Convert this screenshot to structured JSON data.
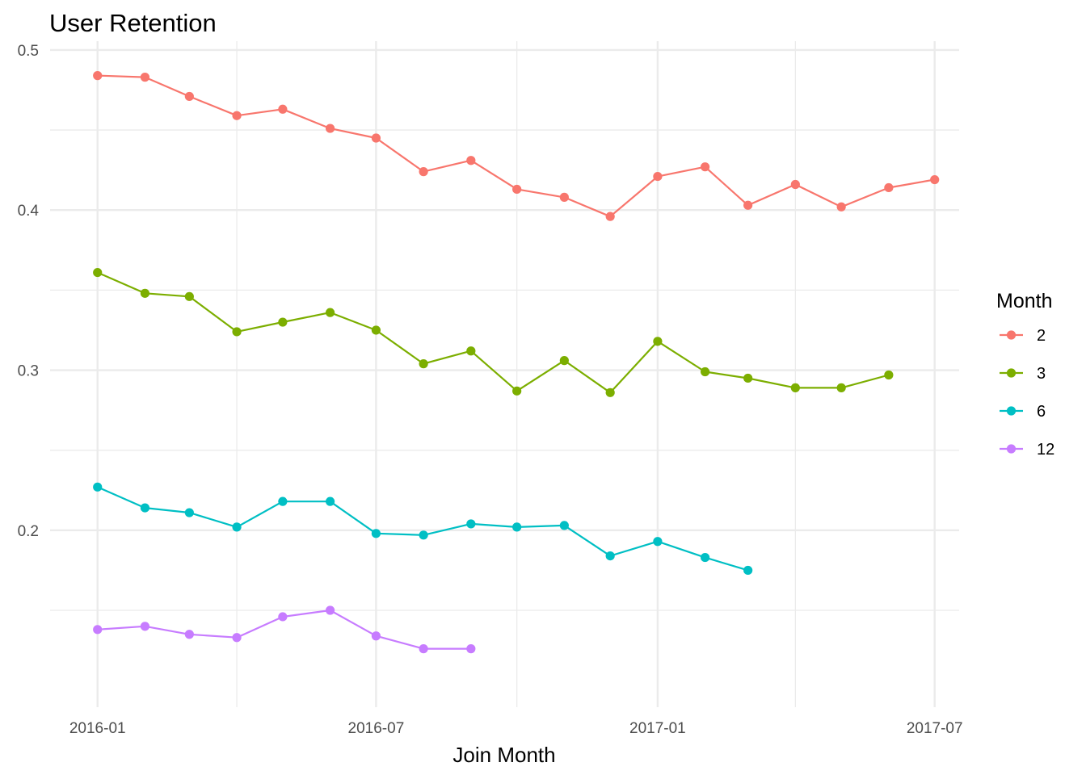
{
  "chart_data": {
    "type": "line",
    "title": "User Retention",
    "xlabel": "Join Month",
    "ylabel": "",
    "x_type": "date",
    "x_range": [
      "2015-12-01",
      "2017-07-17"
    ],
    "x_ticks": [
      {
        "date": "2016-01-01",
        "label": "2016-01"
      },
      {
        "date": "2016-07-01",
        "label": "2016-07"
      },
      {
        "date": "2017-01-01",
        "label": "2017-01"
      },
      {
        "date": "2017-07-01",
        "label": "2017-07"
      }
    ],
    "x_minor_gridlines": [
      "2016-04-01",
      "2016-10-01",
      "2017-04-01"
    ],
    "ylim": [
      0.0895,
      0.5055
    ],
    "y_ticks": [
      {
        "value": 0.2,
        "label": "0.2"
      },
      {
        "value": 0.3,
        "label": "0.3"
      },
      {
        "value": 0.4,
        "label": "0.4"
      },
      {
        "value": 0.5,
        "label": "0.5"
      }
    ],
    "y_minor_gridlines": [
      0.15,
      0.25,
      0.35,
      0.45
    ],
    "grid": true,
    "legend": {
      "title": "Month",
      "position": "right"
    },
    "series": [
      {
        "name": "2",
        "color": "#F8766D",
        "points": [
          {
            "x": "2016-01-01",
            "y": 0.484
          },
          {
            "x": "2016-02-01",
            "y": 0.483
          },
          {
            "x": "2016-03-01",
            "y": 0.471
          },
          {
            "x": "2016-04-01",
            "y": 0.459
          },
          {
            "x": "2016-05-01",
            "y": 0.463
          },
          {
            "x": "2016-06-01",
            "y": 0.451
          },
          {
            "x": "2016-07-01",
            "y": 0.445
          },
          {
            "x": "2016-08-01",
            "y": 0.424
          },
          {
            "x": "2016-09-01",
            "y": 0.431
          },
          {
            "x": "2016-10-01",
            "y": 0.413
          },
          {
            "x": "2016-11-01",
            "y": 0.408
          },
          {
            "x": "2016-12-01",
            "y": 0.396
          },
          {
            "x": "2017-01-01",
            "y": 0.421
          },
          {
            "x": "2017-02-01",
            "y": 0.427
          },
          {
            "x": "2017-03-01",
            "y": 0.403
          },
          {
            "x": "2017-04-01",
            "y": 0.416
          },
          {
            "x": "2017-05-01",
            "y": 0.402
          },
          {
            "x": "2017-06-01",
            "y": 0.414
          },
          {
            "x": "2017-07-01",
            "y": 0.419
          }
        ]
      },
      {
        "name": "3",
        "color": "#7CAE00",
        "points": [
          {
            "x": "2016-01-01",
            "y": 0.361
          },
          {
            "x": "2016-02-01",
            "y": 0.348
          },
          {
            "x": "2016-03-01",
            "y": 0.346
          },
          {
            "x": "2016-04-01",
            "y": 0.324
          },
          {
            "x": "2016-05-01",
            "y": 0.33
          },
          {
            "x": "2016-06-01",
            "y": 0.336
          },
          {
            "x": "2016-07-01",
            "y": 0.325
          },
          {
            "x": "2016-08-01",
            "y": 0.304
          },
          {
            "x": "2016-09-01",
            "y": 0.312
          },
          {
            "x": "2016-10-01",
            "y": 0.287
          },
          {
            "x": "2016-11-01",
            "y": 0.306
          },
          {
            "x": "2016-12-01",
            "y": 0.286
          },
          {
            "x": "2017-01-01",
            "y": 0.318
          },
          {
            "x": "2017-02-01",
            "y": 0.299
          },
          {
            "x": "2017-03-01",
            "y": 0.295
          },
          {
            "x": "2017-04-01",
            "y": 0.289
          },
          {
            "x": "2017-05-01",
            "y": 0.289
          },
          {
            "x": "2017-06-01",
            "y": 0.297
          }
        ]
      },
      {
        "name": "6",
        "color": "#00BFC4",
        "points": [
          {
            "x": "2016-01-01",
            "y": 0.227
          },
          {
            "x": "2016-02-01",
            "y": 0.214
          },
          {
            "x": "2016-03-01",
            "y": 0.211
          },
          {
            "x": "2016-04-01",
            "y": 0.202
          },
          {
            "x": "2016-05-01",
            "y": 0.218
          },
          {
            "x": "2016-06-01",
            "y": 0.218
          },
          {
            "x": "2016-07-01",
            "y": 0.198
          },
          {
            "x": "2016-08-01",
            "y": 0.197
          },
          {
            "x": "2016-09-01",
            "y": 0.204
          },
          {
            "x": "2016-10-01",
            "y": 0.202
          },
          {
            "x": "2016-11-01",
            "y": 0.203
          },
          {
            "x": "2016-12-01",
            "y": 0.184
          },
          {
            "x": "2017-01-01",
            "y": 0.193
          },
          {
            "x": "2017-02-01",
            "y": 0.183
          },
          {
            "x": "2017-03-01",
            "y": 0.175
          }
        ]
      },
      {
        "name": "12",
        "color": "#C77CFF",
        "points": [
          {
            "x": "2016-01-01",
            "y": 0.138
          },
          {
            "x": "2016-02-01",
            "y": 0.14
          },
          {
            "x": "2016-03-01",
            "y": 0.135
          },
          {
            "x": "2016-04-01",
            "y": 0.133
          },
          {
            "x": "2016-05-01",
            "y": 0.146
          },
          {
            "x": "2016-06-01",
            "y": 0.15
          },
          {
            "x": "2016-07-01",
            "y": 0.134
          },
          {
            "x": "2016-08-01",
            "y": 0.126
          },
          {
            "x": "2016-09-01",
            "y": 0.126
          }
        ]
      }
    ]
  }
}
